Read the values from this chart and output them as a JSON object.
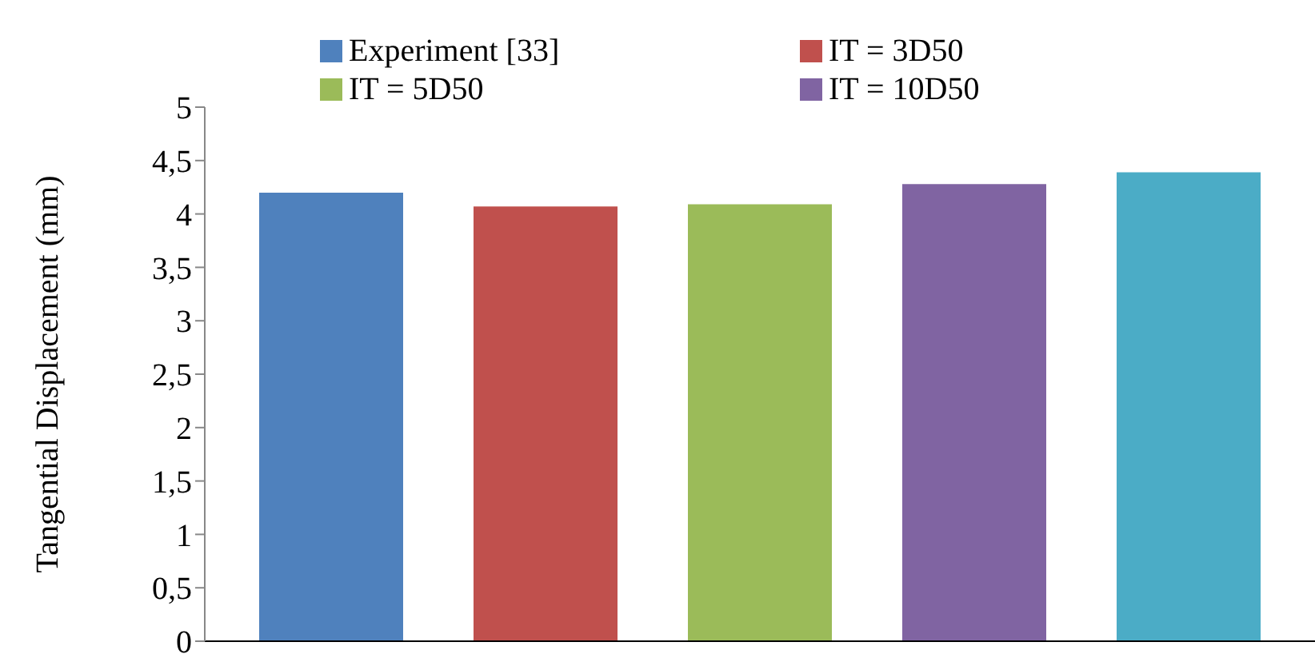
{
  "chart_data": {
    "type": "bar",
    "ylabel": "Tangential Displacement (mm)",
    "categories": [
      null
    ],
    "series": [
      {
        "name": "Experiment [33]",
        "color": "#4f81bd",
        "values": [
          4.2
        ]
      },
      {
        "name": "IT = 3D50",
        "color": "#c0504d",
        "values": [
          4.07
        ]
      },
      {
        "name": "IT = 5D50",
        "color": "#9bbb59",
        "values": [
          4.09
        ]
      },
      {
        "name": "IT = 10D50",
        "color": "#8064a2",
        "values": [
          4.28
        ]
      },
      {
        "color": "#4bacc6",
        "values": [
          4.39
        ]
      }
    ],
    "ylim": [
      0,
      5
    ],
    "yticks": [
      0,
      {
        "value": 0.5,
        "label": "0,5"
      },
      1,
      {
        "value": 1.5,
        "label": "1,5"
      },
      2,
      {
        "value": 2.5,
        "label": "2,5"
      },
      3,
      {
        "value": 3.5,
        "label": "3,5"
      },
      4,
      {
        "value": 4.5,
        "label": "4,5"
      },
      5
    ],
    "grid": false,
    "legend": "top"
  }
}
